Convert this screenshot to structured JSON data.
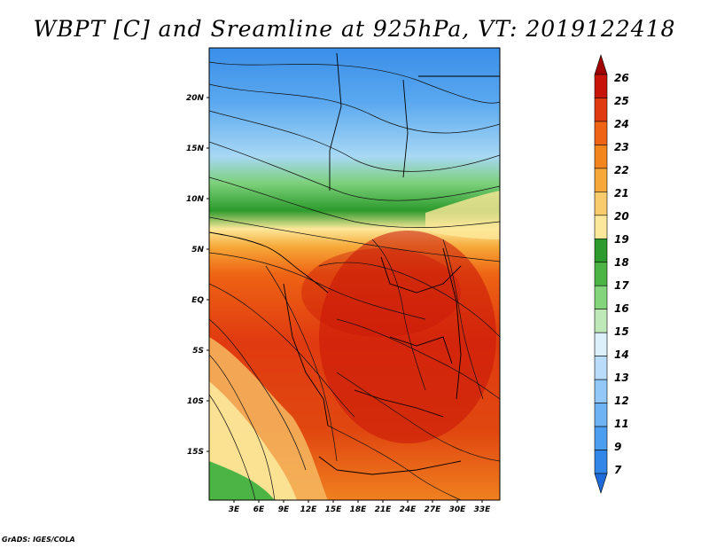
{
  "title": "WBPT [C] and Sreamline at 925hPa, VT: 2019122418",
  "credit": "GrADS: IGES/COLA",
  "map": {
    "lat_labels": [
      "20N",
      "15N",
      "10N",
      "5N",
      "EQ",
      "5S",
      "10S",
      "15S"
    ],
    "lon_labels": [
      "3E",
      "6E",
      "9E",
      "12E",
      "15E",
      "18E",
      "21E",
      "24E",
      "27E",
      "30E",
      "33E"
    ]
  },
  "colorbar": {
    "levels": [
      "7",
      "9",
      "11",
      "12",
      "13",
      "14",
      "15",
      "16",
      "17",
      "18",
      "19",
      "20",
      "21",
      "22",
      "23",
      "24",
      "25",
      "26"
    ],
    "colors": [
      "#1e6ad8",
      "#3286e8",
      "#4c9ef0",
      "#6eb4f4",
      "#92c8f8",
      "#b8dcfa",
      "#dcf0fc",
      "#bfe8b8",
      "#84d47c",
      "#4cb444",
      "#2c9a2c",
      "#fce89a",
      "#f8cc6c",
      "#f6a838",
      "#f2861c",
      "#ee6414",
      "#e03a10",
      "#c81408",
      "#a00000"
    ]
  }
}
